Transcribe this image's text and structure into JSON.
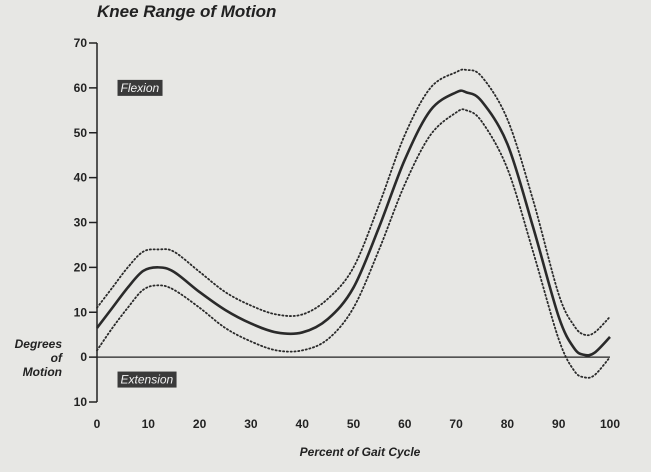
{
  "chart_data": {
    "type": "line",
    "title": "Knee Range of Motion",
    "xlabel": "Percent of Gait Cycle",
    "ylabel_lines": [
      "Degrees",
      "of",
      "Motion"
    ],
    "xlim": [
      0,
      100
    ],
    "ylim": [
      -10,
      70
    ],
    "x_ticks": [
      0,
      10,
      20,
      30,
      40,
      50,
      60,
      70,
      80,
      90,
      100
    ],
    "y_ticks": [
      {
        "value": 70,
        "label": "70"
      },
      {
        "value": 60,
        "label": "60"
      },
      {
        "value": 50,
        "label": "50"
      },
      {
        "value": 40,
        "label": "40"
      },
      {
        "value": 30,
        "label": "30"
      },
      {
        "value": 20,
        "label": "20"
      },
      {
        "value": 10,
        "label": "10"
      },
      {
        "value": 0,
        "label": "0"
      },
      {
        "value": -10,
        "label": "10"
      }
    ],
    "annotations": [
      {
        "text": "Flexion",
        "x": 4,
        "y": 60
      },
      {
        "text": "Extension",
        "x": 4,
        "y": -5
      }
    ],
    "reference_line": {
      "y": 0
    },
    "grid": false,
    "series": [
      {
        "style": "solid",
        "x": [
          0,
          3,
          6,
          9,
          12,
          15,
          20,
          25,
          30,
          35,
          40,
          45,
          50,
          55,
          60,
          65,
          70,
          72,
          75,
          80,
          85,
          90,
          93,
          95,
          97,
          100
        ],
        "y": [
          6.5,
          11,
          15.5,
          19.2,
          20,
          19,
          14.5,
          10.5,
          7.5,
          5.5,
          5.5,
          8.5,
          15.5,
          29,
          44,
          55,
          59,
          59,
          57,
          47.5,
          29,
          9,
          2,
          0.5,
          1,
          4.5
        ]
      },
      {
        "style": "dotted",
        "x": [
          0,
          3,
          6,
          9,
          12,
          15,
          20,
          25,
          30,
          35,
          40,
          45,
          50,
          55,
          60,
          65,
          70,
          72,
          75,
          80,
          85,
          90,
          93,
          95,
          97,
          100
        ],
        "y": [
          11,
          15.5,
          20,
          23.5,
          24,
          23.5,
          19,
          14.5,
          11.5,
          9.5,
          9.5,
          13,
          20,
          34,
          49.5,
          60,
          63.5,
          64,
          62.5,
          53,
          35,
          14,
          7,
          5,
          5.5,
          9
        ]
      },
      {
        "style": "dotted",
        "x": [
          0,
          3,
          6,
          9,
          12,
          15,
          20,
          25,
          30,
          35,
          40,
          45,
          50,
          55,
          60,
          65,
          70,
          72,
          75,
          80,
          85,
          90,
          93,
          95,
          97,
          100
        ],
        "y": [
          1.5,
          6.5,
          11,
          15,
          16,
          15,
          11,
          6.5,
          3.5,
          1.5,
          1.5,
          4,
          11,
          24,
          38.5,
          49.5,
          54.5,
          55,
          52.5,
          42,
          23.5,
          4,
          -3,
          -4.5,
          -4,
          0
        ]
      }
    ]
  }
}
